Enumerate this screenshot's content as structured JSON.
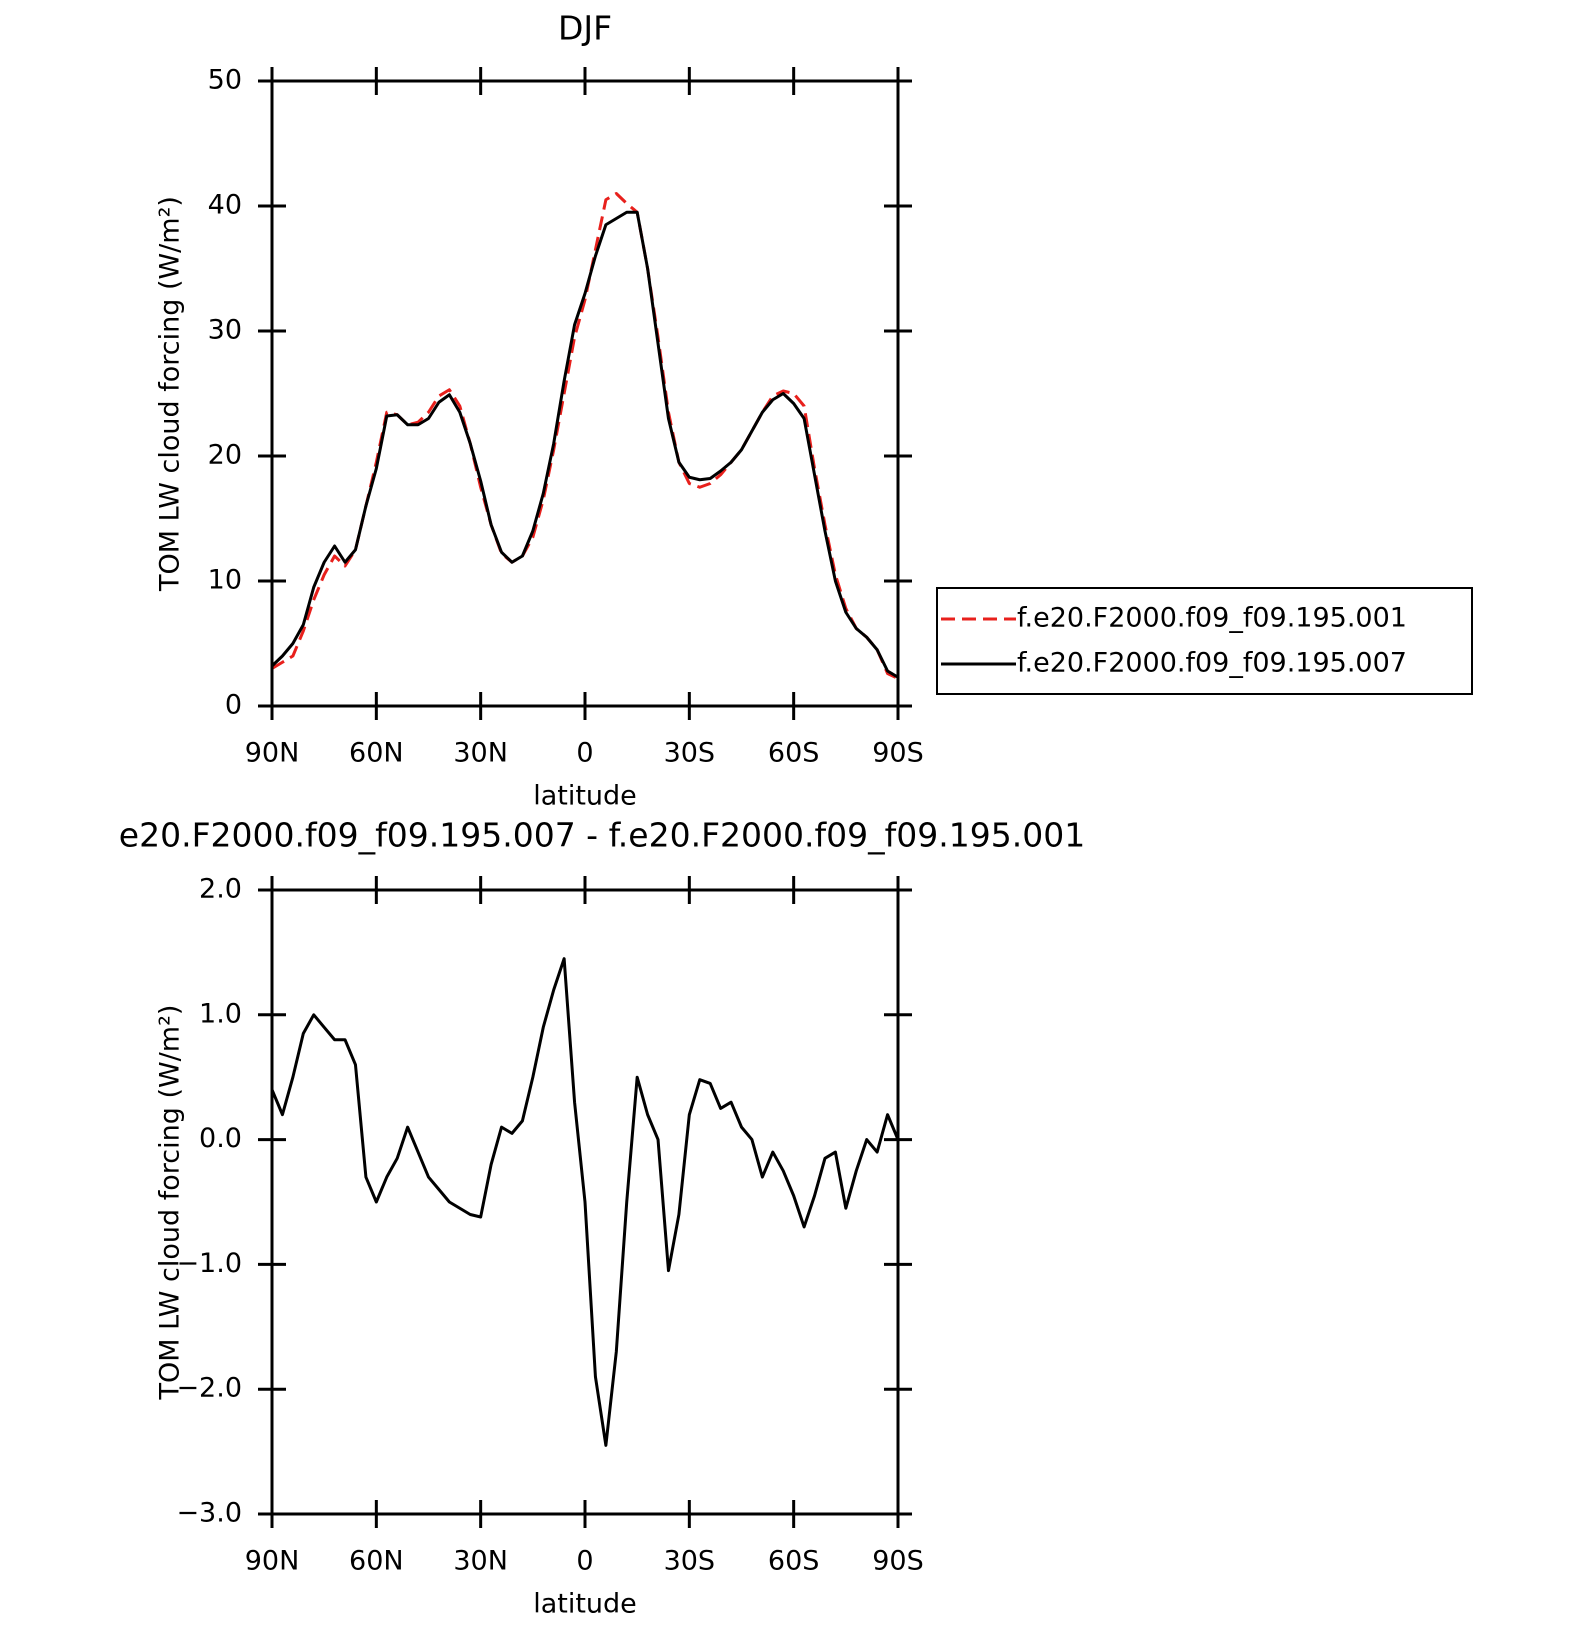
{
  "chart_data": [
    {
      "type": "line",
      "title": "DJF",
      "x_label": "latitude",
      "y_label": "TOM LW cloud forcing (W/m²)",
      "x": [
        90,
        87,
        84,
        81,
        78,
        75,
        72,
        69,
        66,
        63,
        60,
        57,
        54,
        51,
        48,
        45,
        42,
        39,
        36,
        33,
        30,
        27,
        24,
        21,
        18,
        15,
        12,
        9,
        6,
        3,
        0,
        -3,
        -6,
        -9,
        -12,
        -15,
        -18,
        -21,
        -24,
        -27,
        -30,
        -33,
        -36,
        -39,
        -42,
        -45,
        -48,
        -51,
        -54,
        -57,
        -60,
        -63,
        -66,
        -69,
        -72,
        -75,
        -78,
        -81,
        -84,
        -87,
        -90
      ],
      "series": [
        {
          "name": "f.e20.F2000.f09_f09.195.001",
          "color": "#e8201c",
          "dash": true,
          "values": [
            3,
            3.5,
            4,
            6,
            8.5,
            10.5,
            12,
            11.2,
            12.5,
            16,
            19.5,
            23.5,
            23.3,
            22.5,
            22.7,
            23.5,
            24.8,
            25.3,
            24,
            21,
            17.5,
            14.5,
            12.2,
            11.5,
            12,
            13.5,
            16.5,
            20.5,
            25,
            29.5,
            32.5,
            36.5,
            40.5,
            41,
            40.2,
            39.5,
            35,
            29.5,
            23.5,
            19.5,
            17.8,
            17.5,
            17.8,
            18.5,
            19.5,
            20.5,
            22,
            23.5,
            24.8,
            25.2,
            25,
            24,
            19,
            14.5,
            10.5,
            7.8,
            6.2,
            5.5,
            4.5,
            2.6,
            2.2
          ]
        },
        {
          "name": "f.e20.F2000.f09_f09.195.007",
          "color": "#000000",
          "dash": false,
          "values": [
            3.2,
            4,
            5,
            6.5,
            9.5,
            11.5,
            12.8,
            11.5,
            12.5,
            16,
            19,
            23.2,
            23.3,
            22.5,
            22.5,
            23,
            24.3,
            24.9,
            23.5,
            21,
            18,
            14.5,
            12.3,
            11.5,
            12,
            14,
            17,
            21,
            26,
            30.5,
            33,
            36,
            38.5,
            39,
            39.5,
            39.5,
            35,
            29,
            23,
            19.5,
            18.3,
            18.1,
            18.2,
            18.8,
            19.5,
            20.5,
            22,
            23.5,
            24.5,
            25,
            24.2,
            23,
            18.5,
            14,
            10,
            7.5,
            6.2,
            5.5,
            4.5,
            2.8,
            2.3
          ]
        }
      ],
      "xlim": [
        90,
        -90
      ],
      "xticks": [
        {
          "value": 90,
          "label": "90N"
        },
        {
          "value": 60,
          "label": "60N"
        },
        {
          "value": 30,
          "label": "30N"
        },
        0,
        {
          "value": -30,
          "label": "30S"
        },
        {
          "value": -60,
          "label": "60S"
        },
        {
          "value": -90,
          "label": "90S"
        }
      ],
      "ylim": [
        0,
        50
      ],
      "yticks": [
        0,
        10,
        20,
        30,
        40,
        50
      ],
      "legend": "right"
    },
    {
      "type": "line",
      "title": "e20.F2000.f09_f09.195.007 - f.e20.F2000.f09_f09.195.001",
      "x_label": "latitude",
      "y_label": "TOM LW cloud forcing (W/m²)",
      "x": [
        90,
        87,
        84,
        81,
        78,
        75,
        72,
        69,
        66,
        63,
        60,
        57,
        54,
        51,
        48,
        45,
        42,
        39,
        36,
        33,
        30,
        27,
        24,
        21,
        18,
        15,
        12,
        9,
        6,
        3,
        0,
        -3,
        -6,
        -9,
        -12,
        -15,
        -18,
        -21,
        -24,
        -27,
        -30,
        -33,
        -36,
        -39,
        -42,
        -45,
        -48,
        -51,
        -54,
        -57,
        -60,
        -63,
        -66,
        -69,
        -72,
        -75,
        -78,
        -81,
        -84,
        -87,
        -90
      ],
      "series": [
        {
          "color": "#000000",
          "dash": false,
          "values": [
            0.4,
            0.2,
            0.5,
            0.85,
            1.0,
            0.9,
            0.8,
            0.8,
            0.6,
            -0.3,
            -0.5,
            -0.3,
            -0.15,
            0.1,
            -0.1,
            -0.3,
            -0.4,
            -0.5,
            -0.55,
            -0.6,
            -0.62,
            -0.2,
            0.1,
            0.05,
            0.15,
            0.5,
            0.9,
            1.2,
            1.45,
            0.3,
            -0.5,
            -1.9,
            -2.45,
            -1.7,
            -0.5,
            0.5,
            0.2,
            0,
            -1.05,
            -0.6,
            0.2,
            0.48,
            0.45,
            0.25,
            0.3,
            0.1,
            0,
            -0.3,
            -0.1,
            -0.25,
            -0.45,
            -0.7,
            -0.45,
            -0.15,
            -0.1,
            -0.55,
            -0.25,
            0,
            -0.1,
            0.2,
            0
          ]
        }
      ],
      "xlim": [
        90,
        -90
      ],
      "xticks": [
        {
          "value": 90,
          "label": "90N"
        },
        {
          "value": 60,
          "label": "60N"
        },
        {
          "value": 30,
          "label": "30N"
        },
        0,
        {
          "value": -30,
          "label": "30S"
        },
        {
          "value": -60,
          "label": "60S"
        },
        {
          "value": -90,
          "label": "90S"
        }
      ],
      "ylim": [
        -3,
        2
      ],
      "yticks": [
        {
          "value": -3,
          "label": "−3.0"
        },
        {
          "value": -2,
          "label": "−2.0"
        },
        {
          "value": -1,
          "label": "−1.0"
        },
        {
          "value": 0,
          "label": "0.0"
        },
        {
          "value": 1,
          "label": "1.0"
        },
        {
          "value": 2,
          "label": "2.0"
        }
      ]
    }
  ]
}
